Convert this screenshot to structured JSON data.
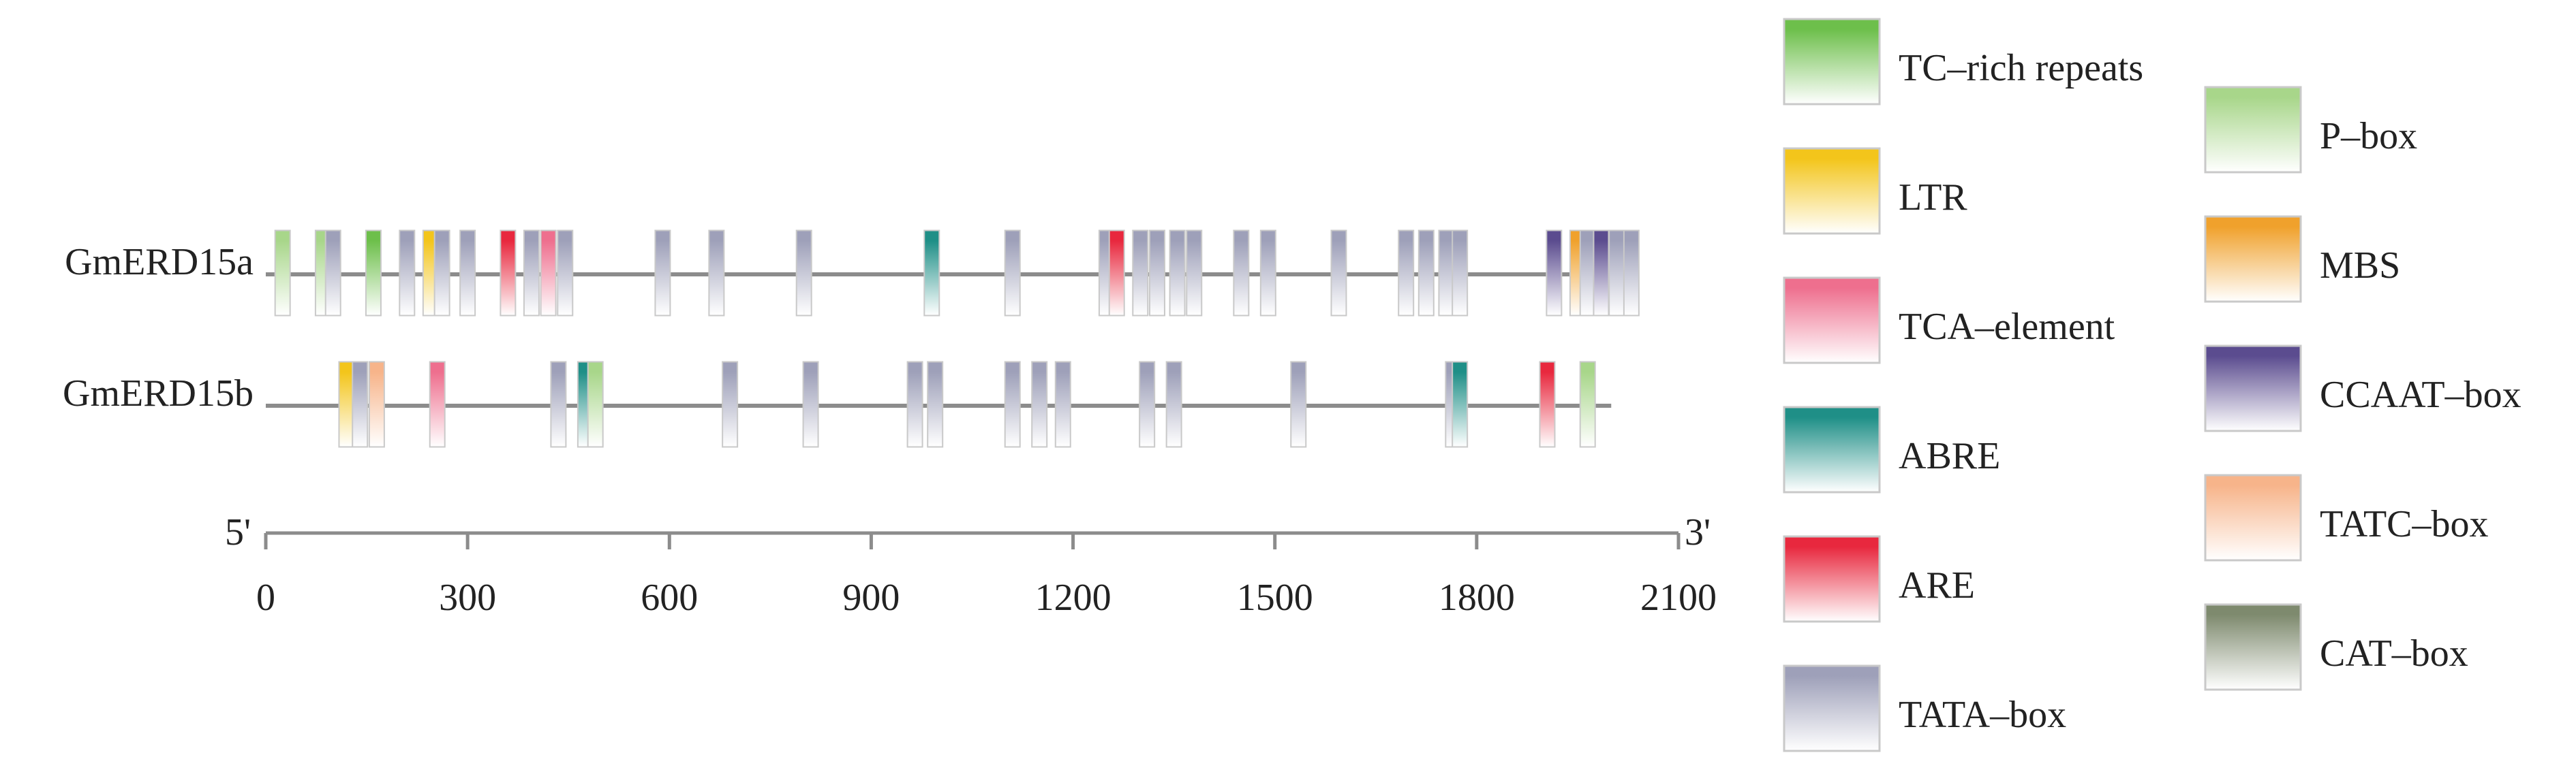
{
  "colors": {
    "TC-rich repeats": "#6dbf4b",
    "LTR": "#f3c51b",
    "TCA-element": "#ee6f8e",
    "ABRE": "#1f8f87",
    "ARE": "#e8283e",
    "TATA-box": "#9ea0b9",
    "P-box": "#a8d68a",
    "MBS": "#f0a12c",
    "CCAAT-box": "#5b4c8f",
    "TATC-box": "#f7b48a",
    "CAT-box": "#7e8a6e"
  },
  "legend": {
    "col1": [
      {
        "label": "TC–rich repeats",
        "type": "TC-rich repeats"
      },
      {
        "label": "LTR",
        "type": "LTR"
      },
      {
        "label": "TCA–element",
        "type": "TCA-element"
      },
      {
        "label": "ABRE",
        "type": "ABRE"
      },
      {
        "label": "ARE",
        "type": "ARE"
      },
      {
        "label": "TATA–box",
        "type": "TATA-box"
      }
    ],
    "col2": [
      {
        "label": "P–box",
        "type": "P-box"
      },
      {
        "label": "MBS",
        "type": "MBS"
      },
      {
        "label": "CCAAT–box",
        "type": "CCAAT-box"
      },
      {
        "label": "TATC–box",
        "type": "TATC-box"
      },
      {
        "label": "CAT–box",
        "type": "CAT-box"
      }
    ]
  },
  "axis": {
    "start_label": "5'",
    "end_label": "3'",
    "min": 0,
    "max": 2100,
    "ticks": [
      0,
      300,
      600,
      900,
      1200,
      1500,
      1800,
      2100
    ]
  },
  "genes": [
    {
      "name": "GmERD15a",
      "length": 2035,
      "elements": [
        {
          "pos": 25,
          "strand": "+",
          "type": "P-box"
        },
        {
          "pos": 85,
          "strand": "+",
          "type": "P-box"
        },
        {
          "pos": 100,
          "strand": "+",
          "type": "TATA-box"
        },
        {
          "pos": 160,
          "strand": "+",
          "type": "TC-rich repeats"
        },
        {
          "pos": 210,
          "strand": "+",
          "type": "TATA-box"
        },
        {
          "pos": 245,
          "strand": "+",
          "type": "LTR"
        },
        {
          "pos": 262,
          "strand": "+",
          "type": "TATA-box"
        },
        {
          "pos": 300,
          "strand": "+",
          "type": "TATA-box"
        },
        {
          "pos": 360,
          "strand": "+",
          "type": "ARE"
        },
        {
          "pos": 395,
          "strand": "+",
          "type": "TATA-box"
        },
        {
          "pos": 420,
          "strand": "+",
          "type": "TCA-element"
        },
        {
          "pos": 445,
          "strand": "+",
          "type": "TATA-box"
        },
        {
          "pos": 590,
          "strand": "+",
          "type": "TATA-box"
        },
        {
          "pos": 670,
          "strand": "+",
          "type": "TATA-box"
        },
        {
          "pos": 800,
          "strand": "+",
          "type": "TATA-box"
        },
        {
          "pos": 990,
          "strand": "+",
          "type": "ABRE"
        },
        {
          "pos": 1110,
          "strand": "+",
          "type": "TATA-box"
        },
        {
          "pos": 1250,
          "strand": "+",
          "type": "TATA-box"
        },
        {
          "pos": 1265,
          "strand": "+",
          "type": "ARE"
        },
        {
          "pos": 1300,
          "strand": "+",
          "type": "TATA-box"
        },
        {
          "pos": 1325,
          "strand": "+",
          "type": "TATA-box"
        },
        {
          "pos": 1355,
          "strand": "+",
          "type": "TATA-box"
        },
        {
          "pos": 1380,
          "strand": "+",
          "type": "TATA-box"
        },
        {
          "pos": 1450,
          "strand": "+",
          "type": "TATA-box"
        },
        {
          "pos": 1490,
          "strand": "+",
          "type": "TATA-box"
        },
        {
          "pos": 1595,
          "strand": "+",
          "type": "TATA-box"
        },
        {
          "pos": 1695,
          "strand": "+",
          "type": "TATA-box"
        },
        {
          "pos": 1725,
          "strand": "+",
          "type": "TATA-box"
        },
        {
          "pos": 1755,
          "strand": "+",
          "type": "TATA-box"
        },
        {
          "pos": 1775,
          "strand": "+",
          "type": "TATA-box"
        },
        {
          "pos": 1915,
          "strand": "+",
          "type": "CCAAT-box"
        },
        {
          "pos": 1950,
          "strand": "+",
          "type": "MBS"
        },
        {
          "pos": 1965,
          "strand": "+",
          "type": "TATA-box"
        },
        {
          "pos": 1985,
          "strand": "+",
          "type": "CCAAT-box"
        },
        {
          "pos": 2008,
          "strand": "+",
          "type": "TATA-box"
        },
        {
          "pos": 2030,
          "strand": "+",
          "type": "TATA-box"
        }
      ]
    },
    {
      "name": "GmERD15b",
      "length": 2000,
      "elements": [
        {
          "pos": 120,
          "strand": "+",
          "type": "LTR"
        },
        {
          "pos": 140,
          "strand": "+",
          "type": "TATA-box"
        },
        {
          "pos": 165,
          "strand": "+",
          "type": "TATC-box"
        },
        {
          "pos": 255,
          "strand": "+",
          "type": "TCA-element"
        },
        {
          "pos": 435,
          "strand": "+",
          "type": "TATA-box"
        },
        {
          "pos": 475,
          "strand": "+",
          "type": "ABRE"
        },
        {
          "pos": 490,
          "strand": "+",
          "type": "P-box"
        },
        {
          "pos": 690,
          "strand": "+",
          "type": "TATA-box"
        },
        {
          "pos": 810,
          "strand": "+",
          "type": "TATA-box"
        },
        {
          "pos": 965,
          "strand": "+",
          "type": "TATA-box"
        },
        {
          "pos": 995,
          "strand": "+",
          "type": "TATA-box"
        },
        {
          "pos": 1110,
          "strand": "+",
          "type": "TATA-box"
        },
        {
          "pos": 1150,
          "strand": "+",
          "type": "TATA-box"
        },
        {
          "pos": 1185,
          "strand": "+",
          "type": "TATA-box"
        },
        {
          "pos": 1310,
          "strand": "+",
          "type": "TATA-box"
        },
        {
          "pos": 1350,
          "strand": "+",
          "type": "TATA-box"
        },
        {
          "pos": 1535,
          "strand": "+",
          "type": "TATA-box"
        },
        {
          "pos": 1765,
          "strand": "+",
          "type": "TATA-box"
        },
        {
          "pos": 1775,
          "strand": "+",
          "type": "ABRE"
        },
        {
          "pos": 1905,
          "strand": "+",
          "type": "ARE"
        },
        {
          "pos": 1965,
          "strand": "+",
          "type": "P-box"
        }
      ]
    }
  ]
}
